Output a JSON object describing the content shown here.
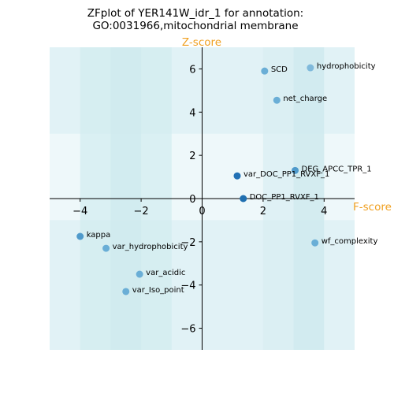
{
  "chart_data": {
    "type": "scatter",
    "title_line1": "ZFplot of YER141W_idr_1 for annotation:",
    "title_line2": "GO:0031966,mitochondrial membrane",
    "xlabel": "F-score",
    "ylabel": "Z-score",
    "xlim": [
      -5,
      5
    ],
    "ylim": [
      -7,
      7
    ],
    "xticks": [
      -4,
      -2,
      0,
      2,
      4
    ],
    "yticks": [
      -6,
      -4,
      -2,
      0,
      2,
      4,
      6
    ],
    "xtick_labels": [
      "−4",
      "−2",
      "0",
      "2",
      "4"
    ],
    "ytick_labels": [
      "−6",
      "−4",
      "−2",
      "0",
      "2",
      "4",
      "6"
    ],
    "grid": false,
    "axis_color": "#000000",
    "background_bands": [
      {
        "x": [
          -5,
          5
        ],
        "y": [
          3,
          7
        ],
        "color": "#dcf0f3"
      },
      {
        "x": [
          -5,
          5
        ],
        "y": [
          -7,
          -1
        ],
        "color": "#dcf0f3"
      },
      {
        "x": [
          -4,
          -1
        ],
        "y": [
          -7,
          7
        ],
        "color": "#d2ecf0"
      },
      {
        "x": [
          -3,
          -2
        ],
        "y": [
          -7,
          7
        ],
        "color": "#cfe9ee"
      },
      {
        "x": [
          2,
          4
        ],
        "y": [
          -7,
          7
        ],
        "color": "#d8eef2"
      },
      {
        "x": [
          3,
          4
        ],
        "y": [
          -7,
          7
        ],
        "color": "#cfe9ee"
      }
    ],
    "points": [
      {
        "label": "SCD",
        "x": 2.05,
        "y": 5.9,
        "color": "#6aaed6"
      },
      {
        "label": "hydrophobicity",
        "x": 3.55,
        "y": 6.05,
        "color": "#7fb9db"
      },
      {
        "label": "net_charge",
        "x": 2.45,
        "y": 4.55,
        "color": "#6aaed6"
      },
      {
        "label": "DEG_APCC_TPR_1",
        "x": 3.05,
        "y": 1.3,
        "color": "#4f9acb"
      },
      {
        "label": "var_DOC_PP1_RVXF_1",
        "x": 1.15,
        "y": 1.05,
        "color": "#2171b5"
      },
      {
        "label": "DOC_PP1_RVXF_1",
        "x": 1.35,
        "y": 0.0,
        "color": "#1f6fb0"
      },
      {
        "label": "kappa",
        "x": -4.0,
        "y": -1.75,
        "color": "#4f9acb"
      },
      {
        "label": "var_hydrophobicity",
        "x": -3.15,
        "y": -2.3,
        "color": "#6aaed6"
      },
      {
        "label": "wf_complexity",
        "x": 3.7,
        "y": -2.05,
        "color": "#6aaed6"
      },
      {
        "label": "var_acidic",
        "x": -2.05,
        "y": -3.5,
        "color": "#6aaed6"
      },
      {
        "label": "var_Iso_point",
        "x": -2.5,
        "y": -4.3,
        "color": "#6aaed6"
      }
    ]
  }
}
